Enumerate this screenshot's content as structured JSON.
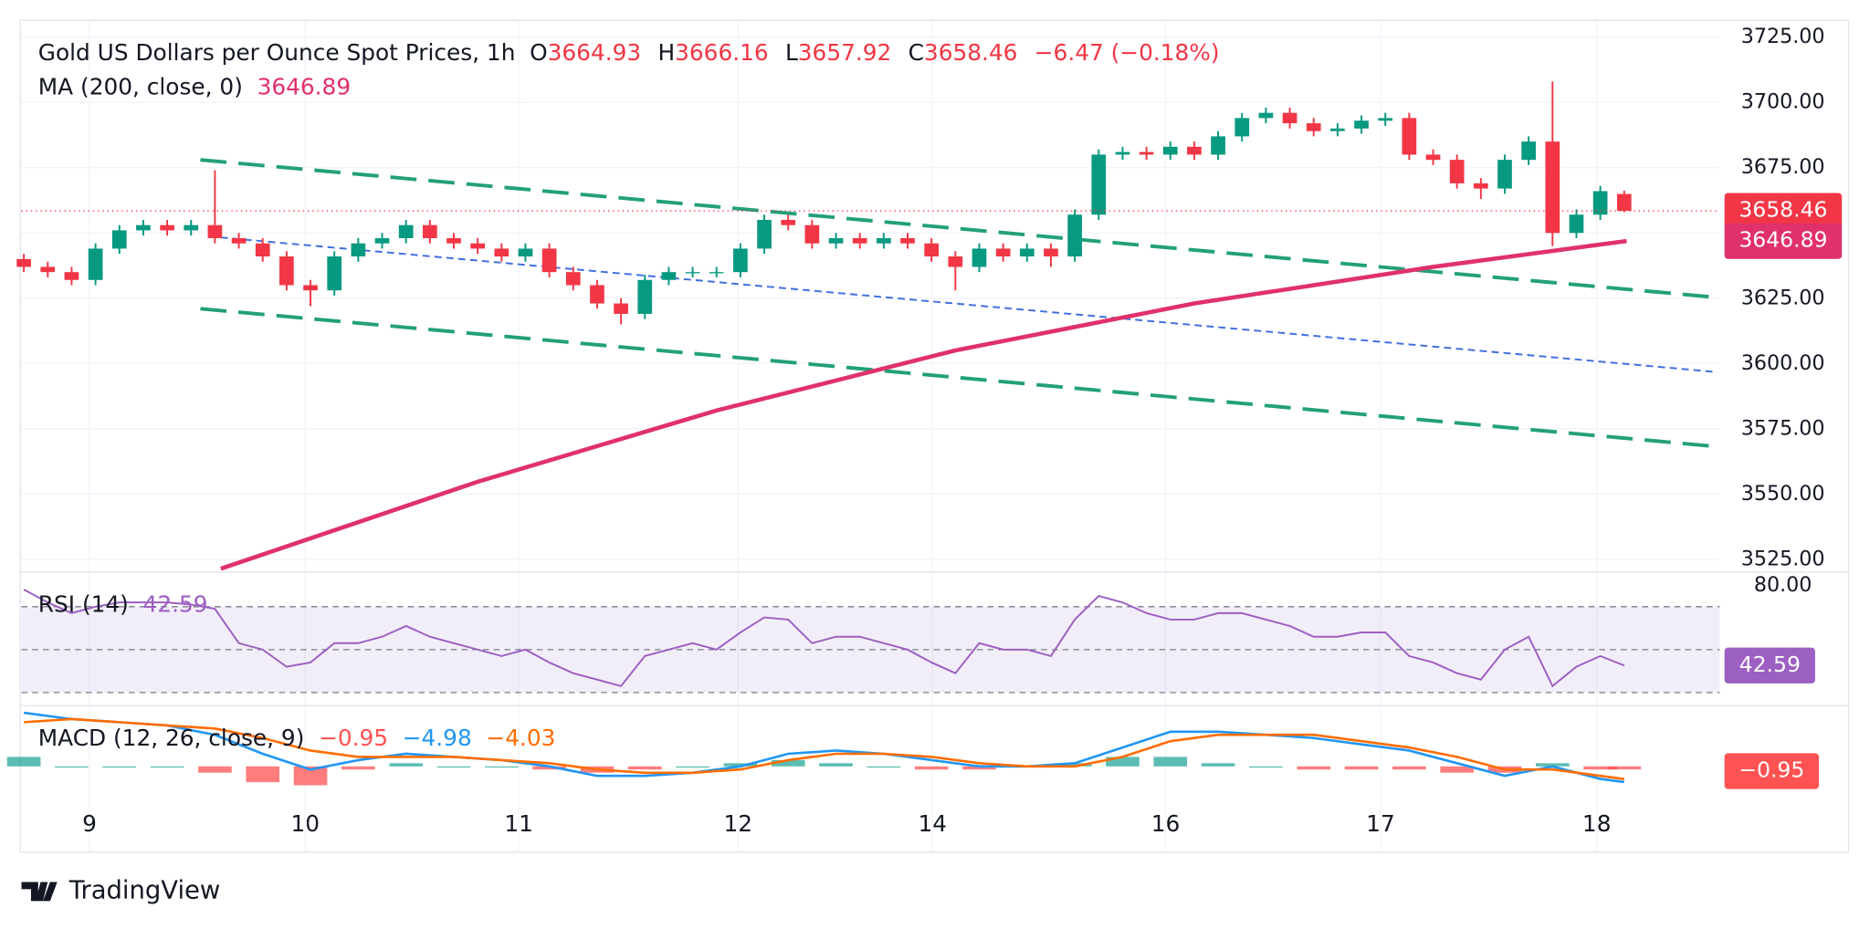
{
  "brand": "TradingView",
  "chart_data": [
    {
      "type": "candlestick",
      "title": "Gold US Dollars per Ounce Spot Prices, 1h",
      "ohlc_labels": [
        "O",
        "H",
        "L",
        "C"
      ],
      "ohlc_values": [
        3664.93,
        3666.16,
        3657.92,
        3658.46
      ],
      "change_text": "−6.47 (−0.18%)",
      "xlim": [
        -0.1,
        71
      ],
      "ylim": [
        3521,
        3731
      ],
      "yticks": [
        {
          "value": 3525,
          "label": "3525.00"
        },
        {
          "value": 3550,
          "label": "3550.00"
        },
        {
          "value": 3575,
          "label": "3575.00"
        },
        {
          "value": 3600,
          "label": "3600.00"
        },
        {
          "value": 3625,
          "label": "3625.00"
        },
        {
          "value": 3650,
          "label": "3650.00"
        },
        {
          "value": 3675,
          "label": "3675.00"
        },
        {
          "value": 3700,
          "label": "3700.00"
        },
        {
          "value": 3725,
          "label": "3725.00"
        }
      ],
      "grid": true,
      "up_color": "#089981",
      "down_color": "#f23645",
      "open": [
        3640,
        3637,
        3635,
        3632,
        3644,
        3651,
        3653,
        3651,
        3653,
        3648,
        3646,
        3641,
        3630,
        3628,
        3641,
        3646,
        3648,
        3653,
        3648,
        3646,
        3644,
        3641,
        3644,
        3635,
        3630,
        3623,
        3619,
        3632,
        3635,
        3635,
        3635,
        3644,
        3655,
        3653,
        3646,
        3648,
        3646,
        3648,
        3646,
        3641,
        3637,
        3644,
        3641,
        3644,
        3641,
        3657,
        3680,
        3681,
        3680,
        3683,
        3680,
        3687,
        3694,
        3696,
        3692,
        3689,
        3690,
        3693,
        3694,
        3680,
        3678,
        3669,
        3667,
        3678,
        3685,
        3650,
        3657,
        3664.93
      ],
      "high": [
        3642,
        3639,
        3637,
        3646,
        3653,
        3655,
        3655,
        3655,
        3674,
        3650,
        3648,
        3643,
        3632,
        3643,
        3648,
        3650,
        3655,
        3655,
        3650,
        3648,
        3646,
        3646,
        3646,
        3637,
        3632,
        3625,
        3634,
        3637,
        3637,
        3637,
        3646,
        3657,
        3657,
        3655,
        3650,
        3650,
        3650,
        3650,
        3648,
        3643,
        3646,
        3646,
        3646,
        3646,
        3659,
        3682,
        3683,
        3683,
        3685,
        3685,
        3689,
        3696,
        3698,
        3698,
        3694,
        3692,
        3695,
        3696,
        3696,
        3682,
        3680,
        3671,
        3680,
        3687,
        3708,
        3659,
        3668,
        3666.16
      ],
      "low": [
        3635,
        3633,
        3630,
        3630,
        3642,
        3649,
        3649,
        3649,
        3646,
        3644,
        3639,
        3628,
        3622,
        3626,
        3639,
        3644,
        3646,
        3646,
        3644,
        3642,
        3639,
        3639,
        3633,
        3628,
        3621,
        3615,
        3617,
        3630,
        3633,
        3633,
        3633,
        3642,
        3651,
        3644,
        3644,
        3644,
        3644,
        3644,
        3639,
        3628,
        3635,
        3639,
        3639,
        3637,
        3639,
        3655,
        3678,
        3678,
        3678,
        3678,
        3678,
        3685,
        3692,
        3690,
        3687,
        3687,
        3688,
        3691,
        3678,
        3676,
        3667,
        3663,
        3665,
        3676,
        3645,
        3648,
        3655,
        3657.92
      ],
      "close": [
        3637,
        3635,
        3632,
        3644,
        3651,
        3653,
        3651,
        3653,
        3648,
        3646,
        3641,
        3630,
        3628,
        3641,
        3646,
        3648,
        3653,
        3648,
        3646,
        3644,
        3641,
        3644,
        3635,
        3630,
        3623,
        3619,
        3632,
        3635,
        3635,
        3635,
        3644,
        3655,
        3653,
        3646,
        3648,
        3646,
        3648,
        3646,
        3641,
        3637,
        3644,
        3641,
        3644,
        3641,
        3657,
        3680,
        3681,
        3680,
        3683,
        3680,
        3687,
        3694,
        3696,
        3692,
        3689,
        3690,
        3693,
        3694,
        3680,
        3678,
        3669,
        3667,
        3678,
        3685,
        3650,
        3657,
        3666,
        3658.46
      ],
      "last_color": "#f23645",
      "ma": {
        "name": "MA (200, close, 0)",
        "color": "#e0316a",
        "x": [
          8.25,
          19,
          29,
          39,
          49,
          59,
          67.1
        ],
        "values": [
          3521.4,
          3554.7,
          3582,
          3605,
          3623,
          3637,
          3646.89
        ]
      },
      "trendlines": [
        {
          "color": "#22a07a",
          "style": "long-dash",
          "x": [
            7.39,
            70.64
          ],
          "values": [
            3678,
            3625.5
          ]
        },
        {
          "color": "#22a07a",
          "style": "long-dash",
          "x": [
            7.39,
            70.64
          ],
          "values": [
            3621,
            3568.4
          ]
        },
        {
          "color": "#3f6ee0",
          "style": "short-dash",
          "x": [
            8.24,
            70.9
          ],
          "values": [
            3648.3,
            3596.7
          ]
        }
      ]
    },
    {
      "type": "line",
      "name": "RSI (14)",
      "color": "#9c5fc2",
      "band_fill": "rgba(126,87,194,0.1)",
      "xlim": [
        -0.1,
        71
      ],
      "ylim": [
        25,
        85
      ],
      "yticks": [
        {
          "value": 80,
          "label": "80.00"
        }
      ],
      "bands": [
        30,
        50,
        70
      ],
      "values": [
        78,
        72,
        67,
        70,
        72,
        72,
        72,
        71,
        69,
        53,
        50,
        42,
        44,
        53,
        53,
        56,
        61,
        56,
        53,
        50,
        47,
        50,
        44,
        39,
        36,
        33,
        47,
        50,
        53,
        50,
        58,
        65,
        64,
        53,
        56,
        56,
        53,
        50,
        44,
        39,
        53,
        50,
        50,
        47,
        64,
        75,
        72,
        67,
        64,
        64,
        67,
        67,
        64,
        61,
        56,
        56,
        58,
        58,
        47,
        44,
        39,
        36,
        50,
        56,
        33,
        42,
        47,
        42.59
      ]
    },
    {
      "type": "macd",
      "name": "MACD (12, 26, close, 9)",
      "xlim": [
        -0.1,
        71
      ],
      "ylim": [
        -14,
        17
      ],
      "xticks": [
        {
          "value": 2.75,
          "label": "9"
        },
        {
          "value": 11.78,
          "label": "10"
        },
        {
          "value": 20.72,
          "label": "11"
        },
        {
          "value": 29.9,
          "label": "12"
        },
        {
          "value": 38.04,
          "label": "14"
        },
        {
          "value": 47.8,
          "label": "16"
        },
        {
          "value": 56.8,
          "label": "17"
        },
        {
          "value": 65.85,
          "label": "18"
        }
      ],
      "x": [
        0,
        2,
        4,
        6,
        8,
        10,
        12,
        14,
        16,
        18,
        20,
        22,
        24,
        26,
        28,
        30,
        32,
        34,
        36,
        38,
        40,
        42,
        44,
        46,
        48,
        50,
        52,
        54,
        56,
        58,
        60,
        62,
        64,
        66,
        67
      ],
      "macd": {
        "color": "#2196f3",
        "values": [
          17,
          15,
          14,
          13,
          10,
          4,
          -1,
          2,
          4,
          3,
          2,
          0,
          -3,
          -3,
          -2,
          0,
          4,
          5,
          4,
          2,
          0,
          0,
          1,
          6,
          11,
          11,
          10,
          9,
          7,
          5,
          1,
          -3,
          0,
          -4,
          -4.98
        ],
        "value_label": "−4.98"
      },
      "signal": {
        "color": "#ff6d00",
        "values": [
          14,
          15,
          14,
          13,
          12,
          9,
          5,
          3,
          3,
          3,
          2,
          1,
          -1,
          -2,
          -2,
          -1,
          2,
          4,
          4,
          3,
          1,
          0,
          0,
          3,
          8,
          10,
          10,
          10,
          8,
          6,
          3,
          -1,
          -1,
          -3,
          -4.03
        ],
        "value_label": "−4.03"
      },
      "hist": {
        "pos_color": "#26a69a",
        "neg_color": "#ff5252",
        "values": [
          3,
          0,
          0,
          0,
          -2,
          -5,
          -6,
          -1,
          1,
          0,
          0,
          -1,
          -2,
          -1,
          0,
          1,
          2,
          1,
          0,
          -1,
          -1,
          0,
          1,
          3,
          3,
          1,
          0,
          -1,
          -1,
          -1,
          -2,
          -2,
          1,
          -1,
          -0.95
        ],
        "value_label": "−0.95"
      }
    }
  ]
}
